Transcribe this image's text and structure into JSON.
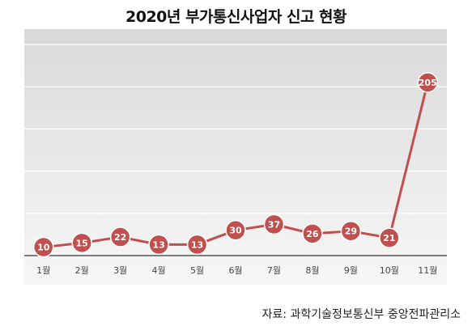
{
  "chart_data": {
    "type": "line",
    "title": "2020년 부가통신사업자 신고 현황",
    "categories": [
      "1월",
      "2월",
      "3월",
      "4월",
      "5월",
      "6월",
      "7월",
      "8월",
      "9월",
      "10월",
      "11월"
    ],
    "series": [
      {
        "values": [
          10,
          15,
          22,
          13,
          13,
          30,
          37,
          26,
          29,
          21,
          205
        ],
        "color": "#c0504d"
      }
    ],
    "ylim": [
      0,
      250
    ],
    "grid": true,
    "data_labels": true,
    "background_gradient": [
      "#d9d9d9",
      "#f7f7f7"
    ]
  },
  "footer": {
    "source": "자료: 과학기술정보통신부 중앙전파관리소"
  }
}
